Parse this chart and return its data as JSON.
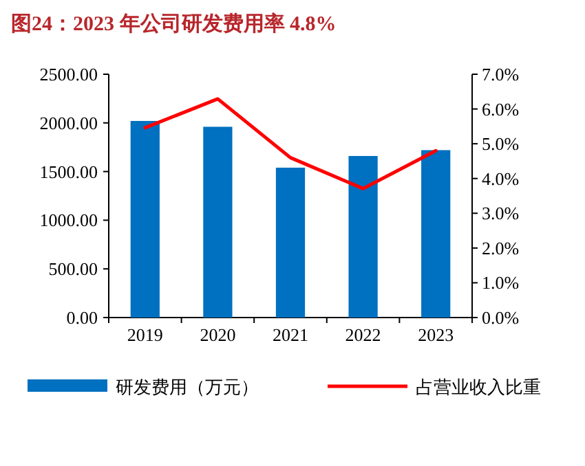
{
  "chart_data": {
    "type": "bar",
    "title": "图24：2023 年公司研发费用率 4.8%",
    "categories": [
      "2019",
      "2020",
      "2021",
      "2022",
      "2023"
    ],
    "series": [
      {
        "name": "研发费用（万元）",
        "color": "#0070c0",
        "values": [
          2020,
          1960,
          1540,
          1660,
          1720
        ]
      },
      {
        "name": "占营业收入比重",
        "type": "line",
        "axis": "y2",
        "color": "#ff0000",
        "values": [
          5.46,
          6.29,
          4.6,
          3.71,
          4.8
        ]
      }
    ],
    "ylim": [
      0,
      2500
    ],
    "yticks": [
      {
        "value": 0,
        "label": "0.00"
      },
      {
        "value": 500,
        "label": "500.00"
      },
      {
        "value": 1000,
        "label": "1000.00"
      },
      {
        "value": 1500,
        "label": "1500.00"
      },
      {
        "value": 2000,
        "label": "2000.00"
      },
      {
        "value": 2500,
        "label": "2500.00"
      }
    ],
    "y2lim": [
      0,
      7
    ],
    "y2ticks": [
      {
        "value": 0,
        "label": "0.0%"
      },
      {
        "value": 1,
        "label": "1.0%"
      },
      {
        "value": 2,
        "label": "2.0%"
      },
      {
        "value": 3,
        "label": "3.0%"
      },
      {
        "value": 4,
        "label": "4.0%"
      },
      {
        "value": 5,
        "label": "5.0%"
      },
      {
        "value": 6,
        "label": "6.0%"
      },
      {
        "value": 7,
        "label": "7.0%"
      }
    ],
    "legend": "bottom"
  }
}
